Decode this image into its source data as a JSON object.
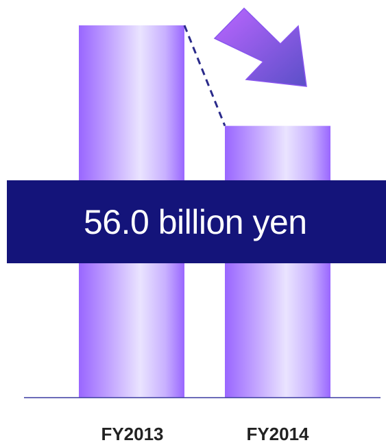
{
  "chart_data": {
    "type": "bar",
    "categories": [
      "FY2013",
      "FY2014"
    ],
    "values": [
      100,
      73
    ],
    "ylim": [
      0,
      100
    ],
    "annotation": "56.0 billion yen",
    "annotation_trend": "decrease",
    "colors": {
      "bar_edge": "#9966ff",
      "bar_mid": "#eae4ff",
      "banner": "#14147a",
      "banner_text": "#ffffff",
      "axis": "#3a3aa0",
      "dashed": "#2a2a8a",
      "arrow_start": "#bb66ff",
      "arrow_end": "#5b4fc8",
      "label": "#222222"
    }
  }
}
